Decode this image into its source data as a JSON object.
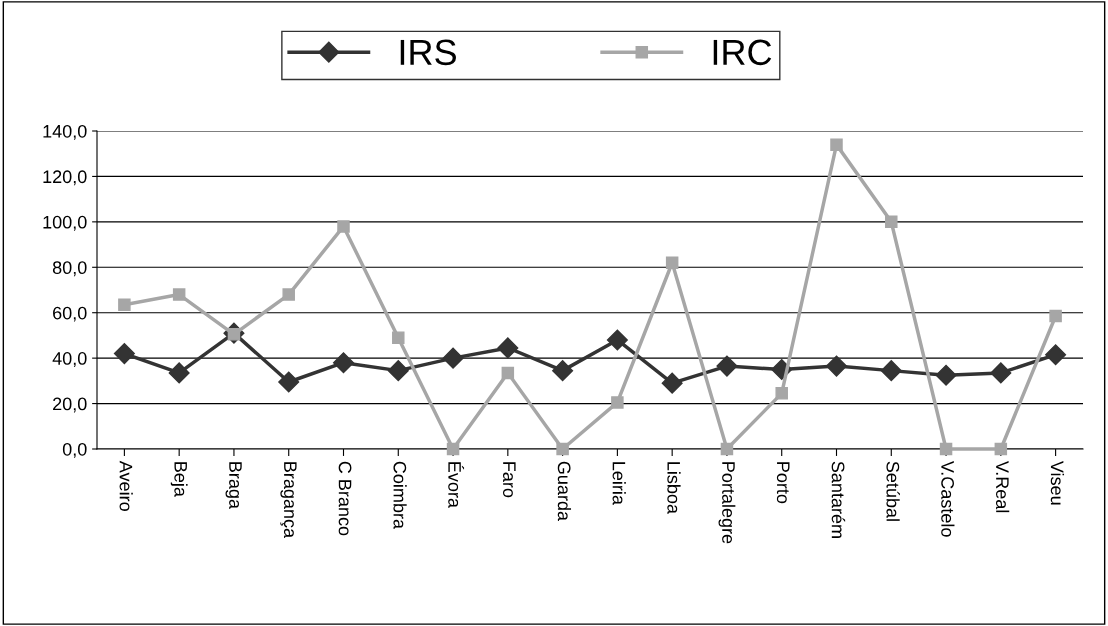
{
  "chart_data": {
    "type": "line",
    "categories": [
      "Aveiro",
      "Beja",
      "Braga",
      "Bragança",
      "C Branco",
      "Coimbra",
      "Évora",
      "Faro",
      "Guarda",
      "Leiria",
      "Lisboa",
      "Portalegre",
      "Porto",
      "Santarém",
      "Setúbal",
      "V.Castelo",
      "V.Real",
      "Viseu"
    ],
    "series": [
      {
        "name": "IRS",
        "color": "#333333",
        "marker": "diamond",
        "values": [
          42,
          33.5,
          51,
          29.5,
          38,
          34.5,
          40,
          44.5,
          34.5,
          48,
          29,
          36.5,
          35,
          36.5,
          34.5,
          32.5,
          33.5,
          41.5
        ]
      },
      {
        "name": "IRC",
        "color": "#a6a6a6",
        "marker": "square",
        "values": [
          63.5,
          68,
          50.5,
          68,
          98,
          49,
          0,
          33.5,
          0,
          20.5,
          82,
          0,
          24.5,
          134,
          100,
          0,
          0,
          58.5
        ]
      }
    ],
    "ylim": [
      0,
      140
    ],
    "yticks": [
      {
        "value": 0,
        "label": "0,0"
      },
      {
        "value": 20,
        "label": "20,0"
      },
      {
        "value": 40,
        "label": "40,0"
      },
      {
        "value": 60,
        "label": "60,0"
      },
      {
        "value": 80,
        "label": "80,0"
      },
      {
        "value": 100,
        "label": "100,0"
      },
      {
        "value": 120,
        "label": "120,0"
      },
      {
        "value": 140,
        "label": "140,0"
      }
    ],
    "grid": "y",
    "legend": "top",
    "line_style": "solid"
  }
}
